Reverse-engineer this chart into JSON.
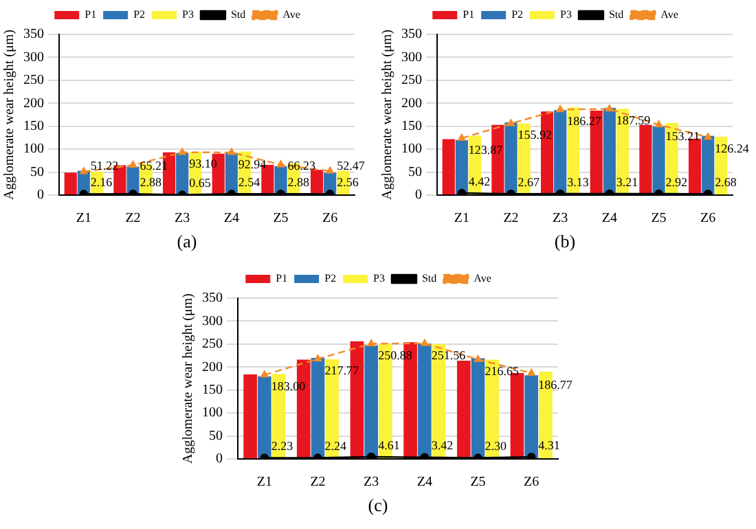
{
  "chart_data": [
    {
      "type": "bar",
      "categories": [
        "Z1",
        "Z2",
        "Z3",
        "Z4",
        "Z5",
        "Z6"
      ],
      "ylabel": "Agglomerate wear height (μm)",
      "ylim": [
        0,
        350
      ],
      "yticks": [
        0,
        50,
        100,
        150,
        200,
        250,
        300,
        350
      ],
      "grid": "y",
      "legend": "top",
      "annotations": [
        "(a)"
      ],
      "series": [
        {
          "name": "P1",
          "color": "#e8161e",
          "values": [
            49,
            65,
            93,
            90,
            66,
            55
          ]
        },
        {
          "name": "P2",
          "color": "#2e75b6",
          "values": [
            53,
            62,
            92,
            92,
            63,
            49
          ]
        },
        {
          "name": "P3",
          "color": "#fbf23c",
          "values": [
            51,
            68,
            94,
            95,
            69,
            53
          ]
        },
        {
          "name": "Ave",
          "type": "line",
          "color": "#f28c28",
          "line_style": "dashed",
          "marker": "triangle",
          "values": [
            51.22,
            65.21,
            93.1,
            92.94,
            66.23,
            52.47
          ],
          "value_labels": [
            "51.22",
            "65.21",
            "93.10",
            "92.94",
            "66.23",
            "52.47"
          ]
        },
        {
          "name": "Std",
          "type": "line",
          "color": "#000000",
          "line_style": "solid",
          "marker": "circle",
          "values": [
            2.16,
            2.88,
            0.65,
            2.54,
            2.88,
            2.56
          ],
          "value_labels": [
            "2.16",
            "2.88",
            "0.65",
            "2.54",
            "2.88",
            "2.56"
          ]
        }
      ]
    },
    {
      "type": "bar",
      "categories": [
        "Z1",
        "Z2",
        "Z3",
        "Z4",
        "Z5",
        "Z6"
      ],
      "ylabel": "Agglomerate wear height (μm)",
      "ylim": [
        0,
        350
      ],
      "yticks": [
        0,
        50,
        100,
        150,
        200,
        250,
        300,
        350
      ],
      "grid": "y",
      "legend": "top",
      "annotations": [
        "(b)"
      ],
      "series": [
        {
          "name": "P1",
          "color": "#e8161e",
          "values": [
            122,
            153,
            182,
            184,
            153,
            123
          ]
        },
        {
          "name": "P2",
          "color": "#2e75b6",
          "values": [
            120,
            158,
            185,
            190,
            150,
            129
          ]
        },
        {
          "name": "P3",
          "color": "#fbf23c",
          "values": [
            129,
            156,
            191,
            188,
            157,
            127
          ]
        },
        {
          "name": "Ave",
          "type": "line",
          "color": "#f28c28",
          "line_style": "dashed",
          "marker": "triangle",
          "values": [
            123.87,
            155.92,
            186.27,
            187.59,
            153.21,
            126.24
          ],
          "value_labels": [
            "123.87",
            "155.92",
            "186.27",
            "187.59",
            "153.21",
            "126.24"
          ]
        },
        {
          "name": "Std",
          "type": "line",
          "color": "#000000",
          "line_style": "solid",
          "marker": "circle",
          "values": [
            4.42,
            2.67,
            3.13,
            3.21,
            2.92,
            2.68
          ],
          "value_labels": [
            "4.42",
            "2.67",
            "3.13",
            "3.21",
            "2.92",
            "2.68"
          ]
        }
      ]
    },
    {
      "type": "bar",
      "categories": [
        "Z1",
        "Z2",
        "Z3",
        "Z4",
        "Z5",
        "Z6"
      ],
      "ylabel": "Agglomerate wear height (μm)",
      "ylim": [
        0,
        350
      ],
      "yticks": [
        0,
        50,
        100,
        150,
        200,
        250,
        300,
        350
      ],
      "grid": "y",
      "legend": "top",
      "annotations": [
        "(c)"
      ],
      "series": [
        {
          "name": "P1",
          "color": "#e8161e",
          "values": [
            184,
            216,
            256,
            254,
            214,
            187
          ]
        },
        {
          "name": "P2",
          "color": "#2e75b6",
          "values": [
            180,
            220,
            247,
            251,
            219,
            182
          ]
        },
        {
          "name": "P3",
          "color": "#fbf23c",
          "values": [
            185,
            217,
            250,
            250,
            216,
            190
          ]
        },
        {
          "name": "Ave",
          "type": "line",
          "color": "#f28c28",
          "line_style": "dashed",
          "marker": "triangle",
          "values": [
            183.0,
            217.77,
            250.88,
            251.56,
            216.65,
            186.77
          ],
          "value_labels": [
            "183.00",
            "217.77",
            "250.88",
            "251.56",
            "216.65",
            "186.77"
          ]
        },
        {
          "name": "Std",
          "type": "line",
          "color": "#000000",
          "line_style": "solid",
          "marker": "circle",
          "values": [
            2.23,
            2.24,
            4.61,
            3.42,
            2.3,
            4.31
          ],
          "value_labels": [
            "2.23",
            "2.24",
            "4.61",
            "3.42",
            "2.30",
            "4.31"
          ]
        }
      ]
    }
  ]
}
